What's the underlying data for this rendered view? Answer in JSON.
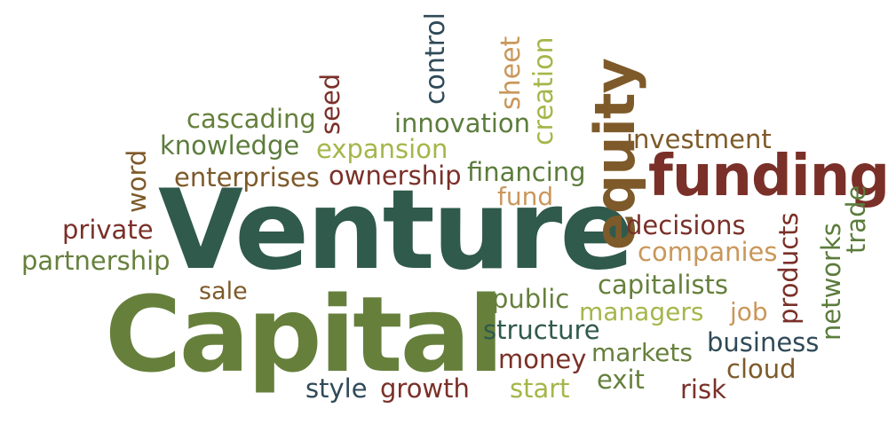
{
  "colors": {
    "dark_teal": "#2f5a4c",
    "olive": "#66803c",
    "maroon": "#7a3028",
    "light_olive": "#a5b64a",
    "brown": "#7e5a2a",
    "tan": "#c9975a",
    "slate": "#2f4a58",
    "green": "#5c7c3c"
  },
  "words": {
    "venture": "Venture",
    "capital": "Capital",
    "funding": "funding",
    "equity": "equity",
    "investment": "investment",
    "decisions": "decisions",
    "companies": "companies",
    "capitalists": "capitalists",
    "managers": "managers",
    "job": "job",
    "products": "products",
    "networks": "networks",
    "trade": "trade",
    "business": "business",
    "cloud": "cloud",
    "risk": "risk",
    "exit": "exit",
    "markets": "markets",
    "start": "start",
    "money": "money",
    "structure": "structure",
    "public": "public",
    "growth": "growth",
    "style": "style",
    "sale": "sale",
    "partnership": "partnership",
    "private": "private",
    "word": "word",
    "enterprises": "enterprises",
    "knowledge": "knowledge",
    "cascading": "cascading",
    "seed": "seed",
    "expansion": "expansion",
    "ownership": "ownership",
    "innovation": "innovation",
    "control": "control",
    "sheet": "sheet",
    "creation": "creation",
    "financing": "financing",
    "fund": "fund"
  }
}
